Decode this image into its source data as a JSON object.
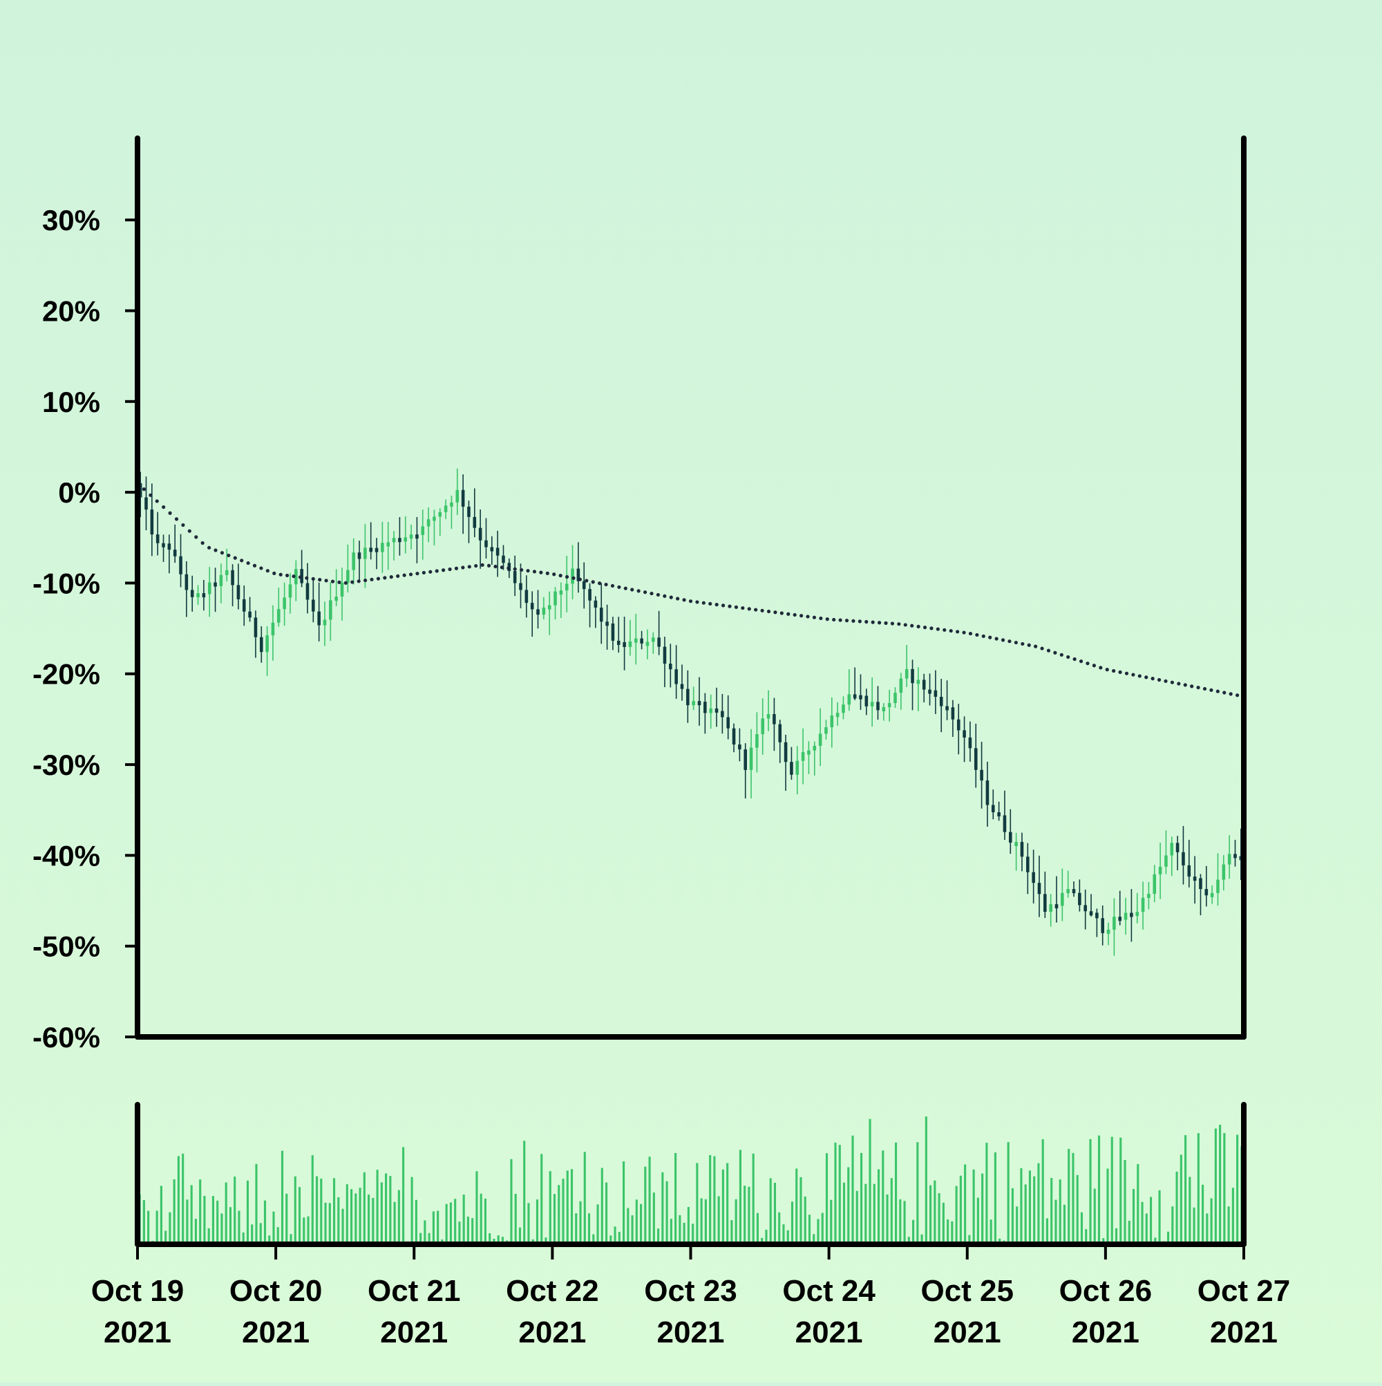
{
  "chart_data": {
    "type": "candlestick",
    "colors": {
      "up": "#3cc46a",
      "down": "#123a40",
      "volume": "#3cc46a",
      "trend": "#1f2a3a",
      "background_top": "#d0f3dc",
      "background_bottom": "#dafbd8",
      "axis": "#000000"
    },
    "price_panel": {
      "y_ticks": [
        30,
        20,
        10,
        0,
        -10,
        -20,
        -30,
        -40,
        -50,
        -60
      ],
      "y_tick_labels": [
        "30%",
        "20%",
        "10%",
        "0%",
        "-10%",
        "-20%",
        "-30%",
        "-40%",
        "-50%",
        "-60%"
      ],
      "y_unit": "percent",
      "ylim": [
        -60,
        39
      ],
      "close_anchors": [
        [
          "2021-10-19T00:00",
          1
        ],
        [
          "2021-10-19T04:00",
          -6
        ],
        [
          "2021-10-19T06:00",
          -6
        ],
        [
          "2021-10-19T10:00",
          -12
        ],
        [
          "2021-10-19T16:00",
          -9
        ],
        [
          "2021-10-19T22:00",
          -17
        ],
        [
          "2021-10-20T04:00",
          -9
        ],
        [
          "2021-10-20T08:00",
          -15
        ],
        [
          "2021-10-20T14:00",
          -7
        ],
        [
          "2021-10-21T02:00",
          -4
        ],
        [
          "2021-10-21T08:00",
          0
        ],
        [
          "2021-10-21T12:00",
          -5
        ],
        [
          "2021-10-21T16:00",
          -8
        ],
        [
          "2021-10-21T22:00",
          -14
        ],
        [
          "2021-10-22T04:00",
          -9
        ],
        [
          "2021-10-22T12:00",
          -17
        ],
        [
          "2021-10-22T18:00",
          -16
        ],
        [
          "2021-10-23T00:00",
          -23
        ],
        [
          "2021-10-23T06:00",
          -25
        ],
        [
          "2021-10-23T10:00",
          -30
        ],
        [
          "2021-10-23T14:00",
          -24
        ],
        [
          "2021-10-23T18:00",
          -31
        ],
        [
          "2021-10-24T04:00",
          -22
        ],
        [
          "2021-10-24T10:00",
          -24
        ],
        [
          "2021-10-24T14:00",
          -20
        ],
        [
          "2021-10-24T20:00",
          -23
        ],
        [
          "2021-10-25T00:00",
          -27
        ],
        [
          "2021-10-25T04:00",
          -34
        ],
        [
          "2021-10-25T10:00",
          -40
        ],
        [
          "2021-10-25T14:00",
          -46
        ],
        [
          "2021-10-25T18:00",
          -44
        ],
        [
          "2021-10-26T00:00",
          -48
        ],
        [
          "2021-10-26T06:00",
          -46
        ],
        [
          "2021-10-26T12:00",
          -39
        ],
        [
          "2021-10-26T18:00",
          -45
        ],
        [
          "2021-10-26T22:00",
          -40
        ],
        [
          "2021-10-27T02:00",
          -40
        ],
        [
          "2021-10-27T06:00",
          -46
        ]
      ],
      "trend_anchors": [
        [
          "2021-10-19T00:00",
          1
        ],
        [
          "2021-10-19T12:00",
          -6
        ],
        [
          "2021-10-20T00:00",
          -9
        ],
        [
          "2021-10-20T12:00",
          -10
        ],
        [
          "2021-10-21T00:00",
          -9
        ],
        [
          "2021-10-21T12:00",
          -8
        ],
        [
          "2021-10-22T00:00",
          -9
        ],
        [
          "2021-10-22T12:00",
          -10.5
        ],
        [
          "2021-10-23T00:00",
          -12
        ],
        [
          "2021-10-23T12:00",
          -13
        ],
        [
          "2021-10-24T00:00",
          -14
        ],
        [
          "2021-10-24T12:00",
          -14.5
        ],
        [
          "2021-10-25T00:00",
          -15.5
        ],
        [
          "2021-10-25T12:00",
          -17
        ],
        [
          "2021-10-26T00:00",
          -19.5
        ],
        [
          "2021-10-26T12:00",
          -21
        ],
        [
          "2021-10-27T00:00",
          -22.5
        ]
      ]
    },
    "volume_panel": {
      "bar_interval_hours": 0.75,
      "relative_volume_range": [
        0,
        1
      ]
    },
    "x_axis": {
      "range": [
        "2021-10-19",
        "2021-10-27"
      ],
      "ticks": [
        "2021-10-19",
        "2021-10-20",
        "2021-10-21",
        "2021-10-22",
        "2021-10-23",
        "2021-10-24",
        "2021-10-25",
        "2021-10-26",
        "2021-10-27"
      ],
      "tick_labels": [
        [
          "Oct 19",
          "2021"
        ],
        [
          "Oct 20",
          "2021"
        ],
        [
          "Oct 21",
          "2021"
        ],
        [
          "Oct 22",
          "2021"
        ],
        [
          "Oct 23",
          "2021"
        ],
        [
          "Oct 24",
          "2021"
        ],
        [
          "Oct 25",
          "2021"
        ],
        [
          "Oct 26",
          "2021"
        ],
        [
          "Oct 27",
          "2021"
        ]
      ]
    }
  }
}
